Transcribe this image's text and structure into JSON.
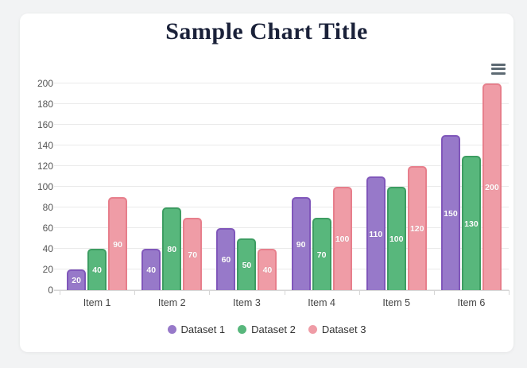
{
  "page": {
    "background_color": "#f2f3f4",
    "card_color": "#ffffff"
  },
  "header": {
    "title": "Sample Chart Title",
    "title_color": "#1a2139"
  },
  "toolbar": {
    "menu_icon": "hamburger-menu-icon",
    "menu_icon_color": "#5d6a73"
  },
  "chart_data": {
    "type": "bar",
    "title": "Sample Chart Title",
    "categories": [
      "Item 1",
      "Item 2",
      "Item 3",
      "Item 4",
      "Item 5",
      "Item 6"
    ],
    "series": [
      {
        "name": "Dataset 1",
        "color": "#9779c9",
        "border_color": "#8057ba",
        "values": [
          20,
          40,
          60,
          90,
          110,
          150
        ]
      },
      {
        "name": "Dataset 2",
        "color": "#58b77c",
        "border_color": "#3d9d62",
        "values": [
          40,
          80,
          50,
          70,
          100,
          130
        ]
      },
      {
        "name": "Dataset 3",
        "color": "#ef9ca6",
        "border_color": "#e77f8c",
        "values": [
          90,
          70,
          40,
          100,
          120,
          200
        ]
      }
    ],
    "xlabel": "",
    "ylabel": "",
    "ylim": [
      0,
      200
    ],
    "y_ticks": [
      0,
      20,
      40,
      60,
      80,
      100,
      120,
      140,
      160,
      180,
      200
    ],
    "grid": true,
    "value_labels": true,
    "value_label_color": "#ffffff",
    "legend_position": "bottom"
  }
}
